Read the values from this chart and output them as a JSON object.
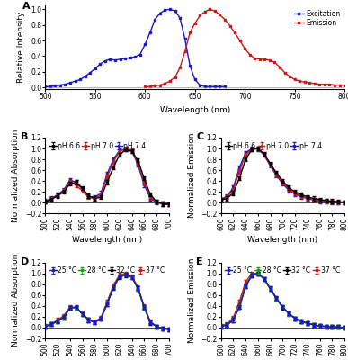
{
  "panel_A": {
    "excitation_x": [
      500,
      505,
      510,
      515,
      520,
      525,
      530,
      535,
      540,
      545,
      550,
      555,
      560,
      565,
      570,
      575,
      580,
      585,
      590,
      595,
      600,
      605,
      610,
      615,
      620,
      625,
      630,
      635,
      640,
      645,
      650,
      655,
      660,
      665,
      670,
      675,
      680
    ],
    "excitation_y": [
      0.01,
      0.01,
      0.02,
      0.03,
      0.04,
      0.06,
      0.08,
      0.1,
      0.14,
      0.19,
      0.24,
      0.3,
      0.34,
      0.36,
      0.35,
      0.36,
      0.37,
      0.38,
      0.39,
      0.42,
      0.55,
      0.7,
      0.87,
      0.95,
      0.99,
      1.0,
      0.98,
      0.89,
      0.62,
      0.28,
      0.1,
      0.03,
      0.01,
      0.01,
      0.01,
      0.01,
      0.01
    ],
    "emission_x": [
      600,
      605,
      610,
      615,
      620,
      625,
      630,
      635,
      640,
      645,
      650,
      655,
      660,
      665,
      670,
      675,
      680,
      685,
      690,
      695,
      700,
      705,
      710,
      715,
      720,
      725,
      730,
      735,
      740,
      745,
      750,
      755,
      760,
      765,
      770,
      775,
      780,
      785,
      790,
      795,
      800
    ],
    "emission_y": [
      0.01,
      0.01,
      0.02,
      0.03,
      0.05,
      0.08,
      0.13,
      0.25,
      0.46,
      0.7,
      0.82,
      0.92,
      0.97,
      1.0,
      0.98,
      0.93,
      0.87,
      0.79,
      0.7,
      0.6,
      0.5,
      0.42,
      0.37,
      0.36,
      0.36,
      0.35,
      0.32,
      0.26,
      0.19,
      0.14,
      0.1,
      0.08,
      0.07,
      0.06,
      0.05,
      0.04,
      0.04,
      0.04,
      0.03,
      0.03,
      0.03
    ],
    "excitation_color": "#1919cc",
    "emission_color": "#cc1919",
    "xlim": [
      500,
      800
    ],
    "ylim": [
      -0.02,
      1.05
    ],
    "xticks": [
      500,
      550,
      600,
      650,
      700,
      750,
      800
    ],
    "yticks": [
      0.0,
      0.2,
      0.4,
      0.6,
      0.8,
      1.0
    ],
    "xlabel": "Wavelength (nm)",
    "ylabel": "Relative Intensity",
    "label": "A",
    "legend_excitation": "Excitation",
    "legend_emission": "Emission"
  },
  "panel_B": {
    "x": [
      500,
      510,
      520,
      530,
      540,
      550,
      560,
      570,
      580,
      590,
      600,
      610,
      620,
      630,
      640,
      650,
      660,
      670,
      680,
      690,
      700
    ],
    "pH66_y": [
      0.02,
      0.06,
      0.13,
      0.2,
      0.35,
      0.38,
      0.27,
      0.13,
      0.08,
      0.1,
      0.38,
      0.65,
      0.88,
      0.98,
      0.95,
      0.78,
      0.45,
      0.15,
      0.02,
      -0.02,
      -0.03
    ],
    "pH70_y": [
      0.02,
      0.07,
      0.14,
      0.22,
      0.38,
      0.32,
      0.22,
      0.1,
      0.08,
      0.14,
      0.48,
      0.75,
      0.95,
      1.0,
      0.97,
      0.73,
      0.38,
      0.1,
      0.02,
      -0.02,
      -0.03
    ],
    "pH74_y": [
      0.03,
      0.08,
      0.15,
      0.24,
      0.42,
      0.38,
      0.25,
      0.12,
      0.1,
      0.18,
      0.53,
      0.8,
      0.96,
      0.98,
      0.95,
      0.7,
      0.33,
      0.08,
      0.01,
      -0.02,
      -0.03
    ],
    "colors": [
      "#000000",
      "#cc1919",
      "#1919cc"
    ],
    "labels": [
      "pH 6.6",
      "pH 7.0",
      "pH 7.4"
    ],
    "xlim": [
      500,
      700
    ],
    "ylim": [
      -0.2,
      1.2
    ],
    "xticks": [
      500,
      520,
      540,
      560,
      580,
      600,
      620,
      640,
      660,
      680,
      700
    ],
    "yticks": [
      -0.2,
      0.0,
      0.2,
      0.4,
      0.6,
      0.8,
      1.0,
      1.2
    ],
    "xlabel": "Wavelength (nm)",
    "ylabel": "Normalized Absorption",
    "label": "B"
  },
  "panel_C": {
    "x": [
      600,
      610,
      620,
      630,
      640,
      650,
      660,
      670,
      680,
      690,
      700,
      710,
      720,
      730,
      740,
      750,
      760,
      770,
      780,
      790,
      800
    ],
    "pH66_y": [
      0.05,
      0.08,
      0.18,
      0.45,
      0.8,
      0.98,
      1.0,
      0.9,
      0.72,
      0.55,
      0.4,
      0.28,
      0.2,
      0.15,
      0.11,
      0.08,
      0.06,
      0.04,
      0.03,
      0.02,
      0.01
    ],
    "pH70_y": [
      0.05,
      0.1,
      0.24,
      0.58,
      0.88,
      0.99,
      1.0,
      0.89,
      0.7,
      0.52,
      0.37,
      0.25,
      0.17,
      0.12,
      0.09,
      0.06,
      0.04,
      0.03,
      0.02,
      0.01,
      0.01
    ],
    "pH74_y": [
      0.06,
      0.12,
      0.28,
      0.65,
      0.92,
      1.0,
      0.99,
      0.88,
      0.68,
      0.5,
      0.35,
      0.23,
      0.16,
      0.11,
      0.08,
      0.05,
      0.03,
      0.02,
      0.01,
      0.01,
      0.0
    ],
    "colors": [
      "#000000",
      "#cc1919",
      "#1919cc"
    ],
    "labels": [
      "pH 6.6",
      "pH 7.0",
      "pH 7.4"
    ],
    "xlim": [
      600,
      800
    ],
    "ylim": [
      -0.2,
      1.2
    ],
    "xticks": [
      600,
      620,
      640,
      660,
      680,
      700,
      720,
      740,
      760,
      780,
      800
    ],
    "yticks": [
      -0.2,
      0.0,
      0.2,
      0.4,
      0.6,
      0.8,
      1.0,
      1.2
    ],
    "xlabel": "Wavelength (nm)",
    "ylabel": "Normalized Emission",
    "label": "C"
  },
  "panel_D": {
    "x": [
      500,
      510,
      520,
      530,
      540,
      550,
      560,
      570,
      580,
      590,
      600,
      610,
      620,
      630,
      640,
      650,
      660,
      670,
      680,
      690,
      700
    ],
    "t25_y": [
      0.02,
      0.06,
      0.12,
      0.19,
      0.36,
      0.38,
      0.25,
      0.14,
      0.1,
      0.16,
      0.44,
      0.74,
      0.94,
      0.98,
      0.93,
      0.73,
      0.38,
      0.1,
      0.02,
      -0.02,
      -0.03
    ],
    "t28_y": [
      0.02,
      0.06,
      0.12,
      0.2,
      0.36,
      0.37,
      0.25,
      0.14,
      0.1,
      0.16,
      0.44,
      0.74,
      0.94,
      0.98,
      0.93,
      0.72,
      0.37,
      0.1,
      0.02,
      -0.02,
      -0.03
    ],
    "t32_y": [
      0.02,
      0.06,
      0.12,
      0.19,
      0.36,
      0.37,
      0.25,
      0.14,
      0.1,
      0.16,
      0.44,
      0.73,
      0.93,
      0.97,
      0.93,
      0.72,
      0.37,
      0.09,
      0.02,
      -0.02,
      -0.03
    ],
    "t37_y": [
      0.03,
      0.07,
      0.14,
      0.22,
      0.38,
      0.37,
      0.26,
      0.15,
      0.11,
      0.18,
      0.47,
      0.78,
      0.97,
      1.0,
      0.95,
      0.74,
      0.39,
      0.11,
      0.02,
      -0.02,
      -0.03
    ],
    "colors": [
      "#1919cc",
      "#00aa00",
      "#000000",
      "#cc1919"
    ],
    "labels": [
      "25 °C",
      "28 °C",
      "32 °C",
      "37 °C"
    ],
    "xlim": [
      500,
      700
    ],
    "ylim": [
      -0.2,
      1.2
    ],
    "xticks": [
      500,
      520,
      540,
      560,
      580,
      600,
      620,
      640,
      660,
      680,
      700
    ],
    "yticks": [
      -0.2,
      0.0,
      0.2,
      0.4,
      0.6,
      0.8,
      1.0,
      1.2
    ],
    "xlabel": "Wavelength (nm)",
    "ylabel": "Normalized Absorption",
    "label": "D"
  },
  "panel_E": {
    "x": [
      600,
      610,
      620,
      630,
      640,
      650,
      660,
      670,
      680,
      690,
      700,
      710,
      720,
      730,
      740,
      750,
      760,
      770,
      780,
      790,
      800
    ],
    "t25_y": [
      0.02,
      0.05,
      0.14,
      0.38,
      0.76,
      0.96,
      1.0,
      0.9,
      0.72,
      0.54,
      0.38,
      0.26,
      0.17,
      0.12,
      0.08,
      0.05,
      0.03,
      0.02,
      0.01,
      0.01,
      0.0
    ],
    "t28_y": [
      0.02,
      0.05,
      0.14,
      0.38,
      0.76,
      0.96,
      1.0,
      0.89,
      0.71,
      0.53,
      0.38,
      0.25,
      0.17,
      0.11,
      0.08,
      0.05,
      0.03,
      0.02,
      0.01,
      0.01,
      0.0
    ],
    "t32_y": [
      0.02,
      0.05,
      0.14,
      0.38,
      0.76,
      0.96,
      1.0,
      0.89,
      0.71,
      0.53,
      0.37,
      0.25,
      0.17,
      0.11,
      0.08,
      0.05,
      0.03,
      0.02,
      0.01,
      0.01,
      0.0
    ],
    "t37_y": [
      0.03,
      0.07,
      0.18,
      0.48,
      0.84,
      1.0,
      1.0,
      0.9,
      0.72,
      0.54,
      0.38,
      0.26,
      0.17,
      0.11,
      0.08,
      0.05,
      0.03,
      0.02,
      0.01,
      0.01,
      0.0
    ],
    "colors": [
      "#1919cc",
      "#00aa00",
      "#000000",
      "#cc1919"
    ],
    "labels": [
      "25 °C",
      "28 °C",
      "32 °C",
      "37 °C"
    ],
    "xlim": [
      600,
      800
    ],
    "ylim": [
      -0.2,
      1.2
    ],
    "xticks": [
      600,
      620,
      640,
      660,
      680,
      700,
      720,
      740,
      760,
      780,
      800
    ],
    "yticks": [
      -0.2,
      0.0,
      0.2,
      0.4,
      0.6,
      0.8,
      1.0,
      1.2
    ],
    "xlabel": "Wavelength (nm)",
    "ylabel": "Normalized Emission",
    "label": "E"
  },
  "marker": "s",
  "markersize": 2.0,
  "linewidth": 1.0,
  "errorbar_capsize": 1.5,
  "errorbar_elinewidth": 0.6,
  "error_value": 0.035,
  "fontsize_axis_label": 6.5,
  "fontsize_tick": 5.5,
  "fontsize_panel": 8,
  "fontsize_legend": 5.5
}
